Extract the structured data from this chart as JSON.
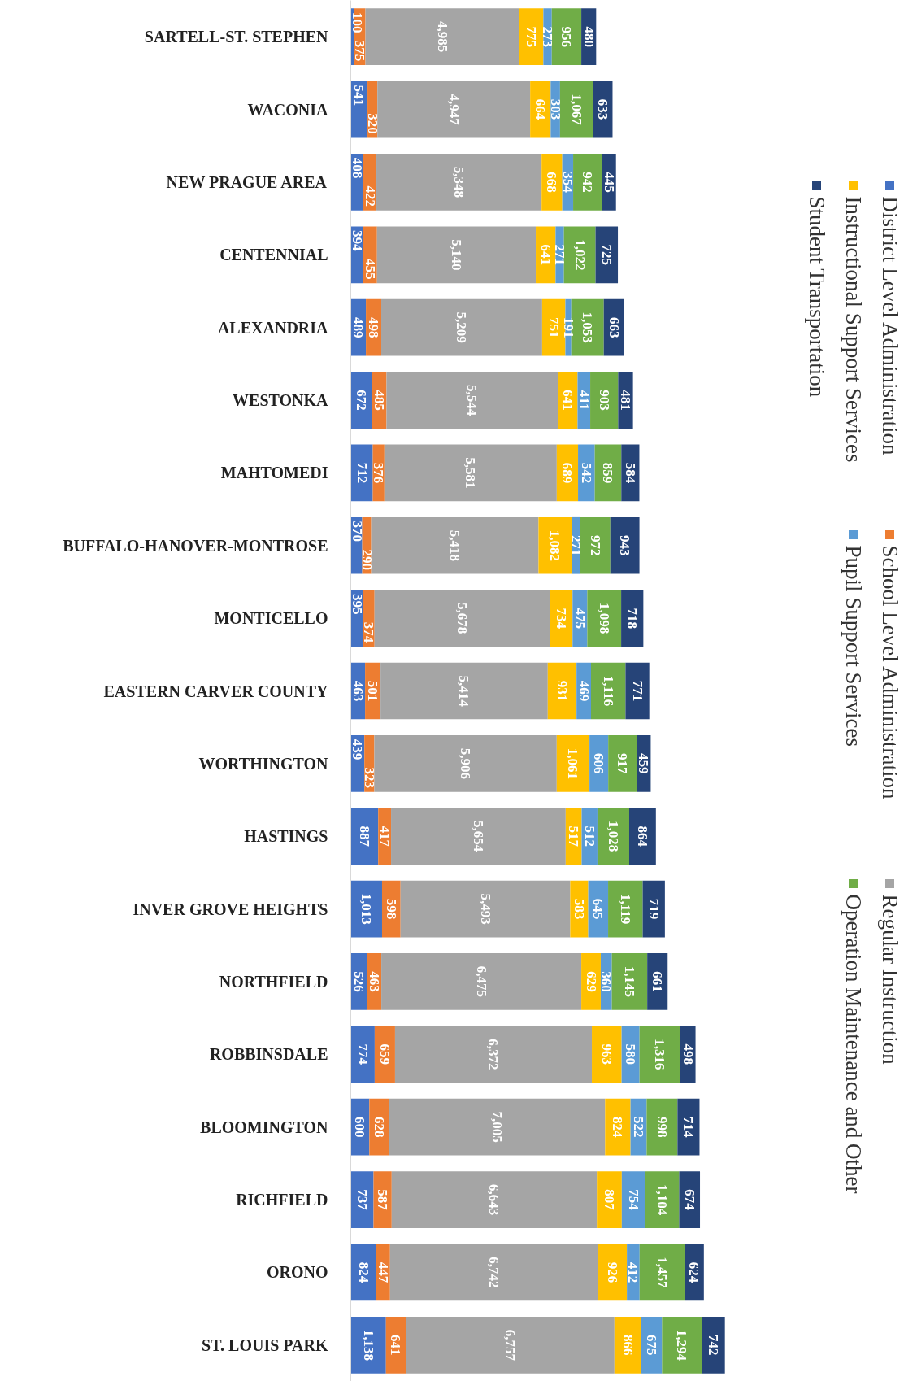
{
  "chart_data": {
    "type": "bar",
    "orientation": "horizontal",
    "stacked": true,
    "legend": "right",
    "tick_labels": "y",
    "categories": [
      "SARTELL-ST. STEPHEN",
      "WACONIA",
      "NEW PRAGUE AREA",
      "CENTENNIAL",
      "ALEXANDRIA",
      "WESTONKA",
      "MAHTOMEDI",
      "BUFFALO-HANOVER-MONTROSE",
      "MONTICELLO",
      "EASTERN CARVER COUNTY",
      "WORTHINGTON",
      "HASTINGS",
      "INVER GROVE HEIGHTS",
      "NORTHFIELD",
      "ROBBINSDALE",
      "BLOOMINGTON",
      "RICHFIELD",
      "ORONO",
      "ST. LOUIS PARK"
    ],
    "series": [
      {
        "name": "District Level Administration",
        "color": "#4472c4",
        "values": [
          100,
          541,
          408,
          394,
          489,
          672,
          712,
          370,
          395,
          463,
          439,
          887,
          1013,
          526,
          774,
          600,
          737,
          824,
          1138
        ],
        "value_labels": [
          "100",
          "541",
          "408",
          "394",
          "489",
          "672",
          "712",
          "370",
          "395",
          "463",
          "439",
          "887",
          "1,013",
          "526",
          "774",
          "600",
          "737",
          "824",
          "1,138"
        ]
      },
      {
        "name": "School Level Administration",
        "color": "#ed7d31",
        "values": [
          375,
          320,
          422,
          455,
          498,
          485,
          376,
          290,
          374,
          501,
          323,
          417,
          598,
          463,
          659,
          628,
          587,
          447,
          641
        ],
        "value_labels": [
          "375",
          "320",
          "422",
          "455",
          "498",
          "485",
          "376",
          "290",
          "374",
          "501",
          "323",
          "417",
          "598",
          "463",
          "659",
          "628",
          "587",
          "447",
          "641"
        ]
      },
      {
        "name": "Regular Instruction",
        "color": "#a5a5a5",
        "values": [
          4985,
          4947,
          5348,
          5140,
          5209,
          5544,
          5581,
          5418,
          5678,
          5414,
          5906,
          5654,
          5493,
          6475,
          6372,
          7005,
          6643,
          6742,
          6757
        ],
        "value_labels": [
          "4,985",
          "4,947",
          "5,348",
          "5,140",
          "5,209",
          "5,544",
          "5,581",
          "5,418",
          "5,678",
          "5,414",
          "5,906",
          "5,654",
          "5,493",
          "6,475",
          "6,372",
          "7,005",
          "6,643",
          "6,742",
          "6,757"
        ]
      },
      {
        "name": "Instructional Support Services",
        "color": "#ffc000",
        "values": [
          775,
          664,
          668,
          641,
          751,
          641,
          689,
          1082,
          734,
          931,
          1061,
          517,
          583,
          629,
          963,
          824,
          807,
          926,
          866
        ],
        "value_labels": [
          "775",
          "664",
          "668",
          "641",
          "751",
          "641",
          "689",
          "1,082",
          "734",
          "931",
          "1,061",
          "517",
          "583",
          "629",
          "963",
          "824",
          "807",
          "926",
          "866"
        ]
      },
      {
        "name": "Pupil Support Services",
        "color": "#5b9bd5",
        "values": [
          273,
          303,
          354,
          271,
          191,
          411,
          542,
          271,
          475,
          469,
          606,
          512,
          645,
          360,
          580,
          522,
          754,
          412,
          675
        ],
        "value_labels": [
          "273",
          "303",
          "354",
          "271",
          "191",
          "411",
          "542",
          "271",
          "475",
          "469",
          "606",
          "512",
          "645",
          "360",
          "580",
          "522",
          "754",
          "412",
          "675"
        ]
      },
      {
        "name": "Operation Maintenance and Other",
        "color": "#70ad47",
        "values": [
          956,
          1067,
          942,
          1022,
          1053,
          903,
          859,
          972,
          1098,
          1116,
          917,
          1028,
          1119,
          1145,
          1316,
          998,
          1104,
          1457,
          1294
        ],
        "value_labels": [
          "956",
          "1,067",
          "942",
          "1,022",
          "1,053",
          "903",
          "859",
          "972",
          "1,098",
          "1,116",
          "917",
          "1,028",
          "1,119",
          "1,145",
          "1,316",
          "998",
          "1,104",
          "1,457",
          "1,294"
        ]
      },
      {
        "name": "Student Transportation",
        "color": "#264478",
        "values": [
          480,
          633,
          445,
          725,
          663,
          481,
          584,
          943,
          718,
          771,
          459,
          864,
          719,
          661,
          498,
          714,
          674,
          624,
          742
        ],
        "value_labels": [
          "480",
          "633",
          "445",
          "725",
          "663",
          "481",
          "584",
          "943",
          "718",
          "771",
          "459",
          "864",
          "719",
          "661",
          "498",
          "714",
          "674",
          "624",
          "742"
        ]
      }
    ]
  }
}
